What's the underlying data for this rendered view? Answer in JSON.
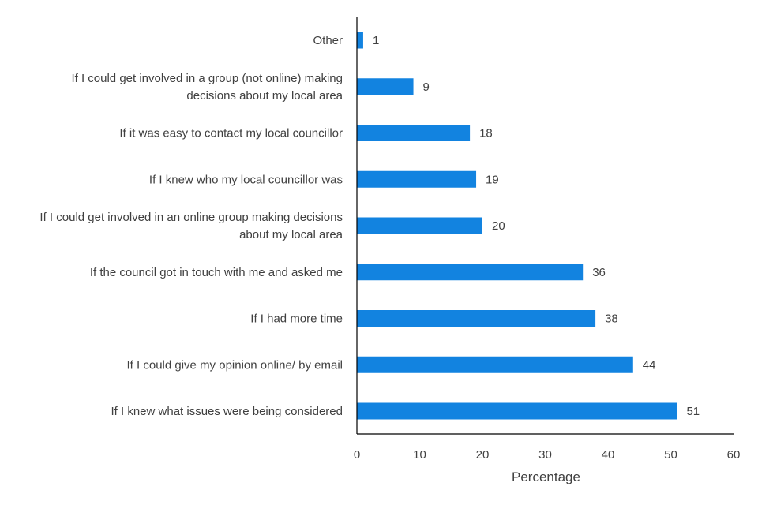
{
  "chart_data": {
    "type": "bar",
    "orientation": "horizontal",
    "title": "",
    "xlabel": "Percentage",
    "ylabel": "",
    "xlim": [
      0,
      60
    ],
    "xticks": [
      0,
      10,
      20,
      30,
      40,
      50,
      60
    ],
    "grid": false,
    "legend": "none",
    "bar_color": "#1283E0",
    "categories": [
      [
        "Other"
      ],
      [
        "If I could get involved in a group (not online) making",
        "decisions about my local area"
      ],
      [
        "If it was easy to contact my local councillor"
      ],
      [
        "If I knew who my local councillor was"
      ],
      [
        "If I could get involved in an online group making decisions",
        "about my local area"
      ],
      [
        "If the council got in touch with me and asked me"
      ],
      [
        "If I had more time"
      ],
      [
        "If I could give my opinion online/ by email"
      ],
      [
        "If I knew what issues were being considered"
      ]
    ],
    "values": [
      1,
      9,
      18,
      19,
      20,
      36,
      38,
      44,
      51
    ]
  }
}
